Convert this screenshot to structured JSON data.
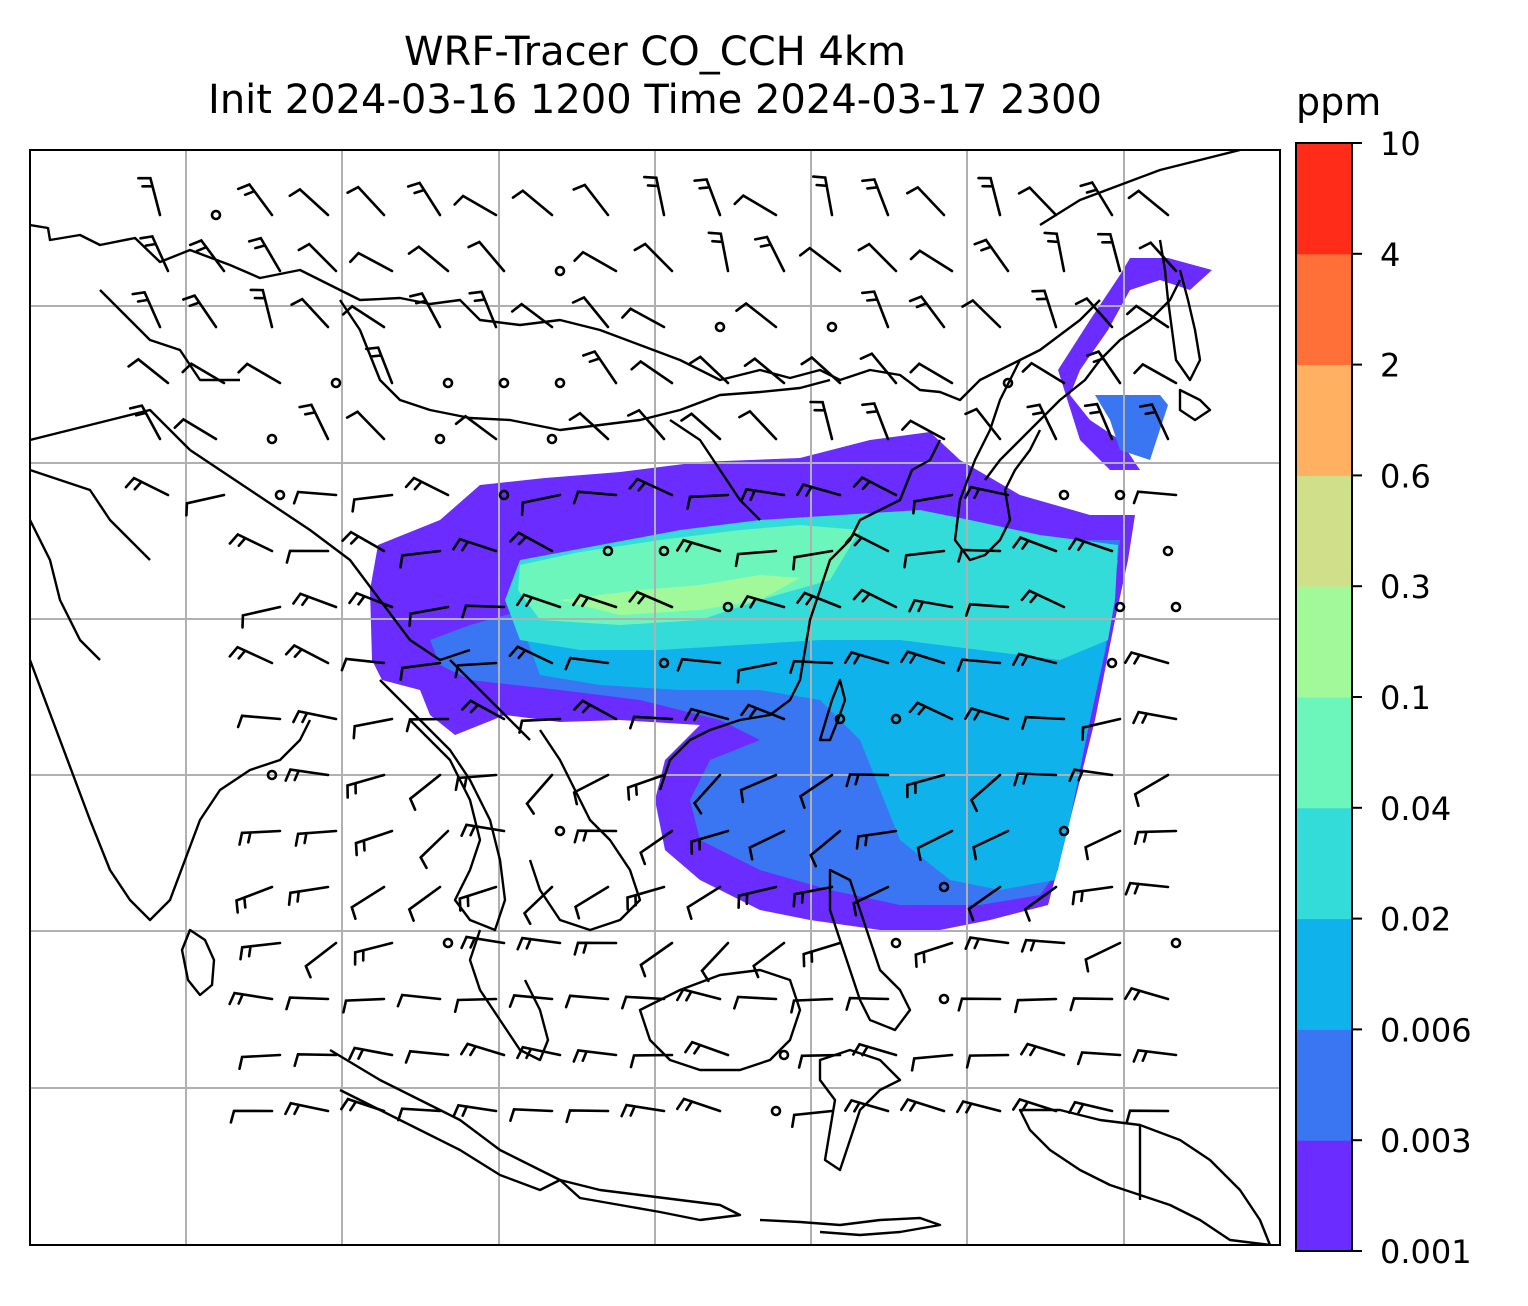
{
  "title": {
    "line1": "WRF-Tracer CO_CCH 4km",
    "line2": "Init 2024-03-16 1200 Time 2024-03-17 2300"
  },
  "map": {
    "gridlines": true,
    "grid_color": "#b0b0b0",
    "coastline_color": "#000000",
    "wind_barb_color": "#000000"
  },
  "colorbar": {
    "unit": "ppm",
    "ticks": [
      "0.001",
      "0.003",
      "0.006",
      "0.02",
      "0.04",
      "0.1",
      "0.3",
      "0.6",
      "2",
      "4",
      "10"
    ],
    "colors": [
      "#6a2cff",
      "#3a76f2",
      "#0fb2eb",
      "#33dbd9",
      "#6cf6bc",
      "#a2f99a",
      "#d0e08a",
      "#ffb060",
      "#ff7038",
      "#ff2c1a"
    ]
  }
}
